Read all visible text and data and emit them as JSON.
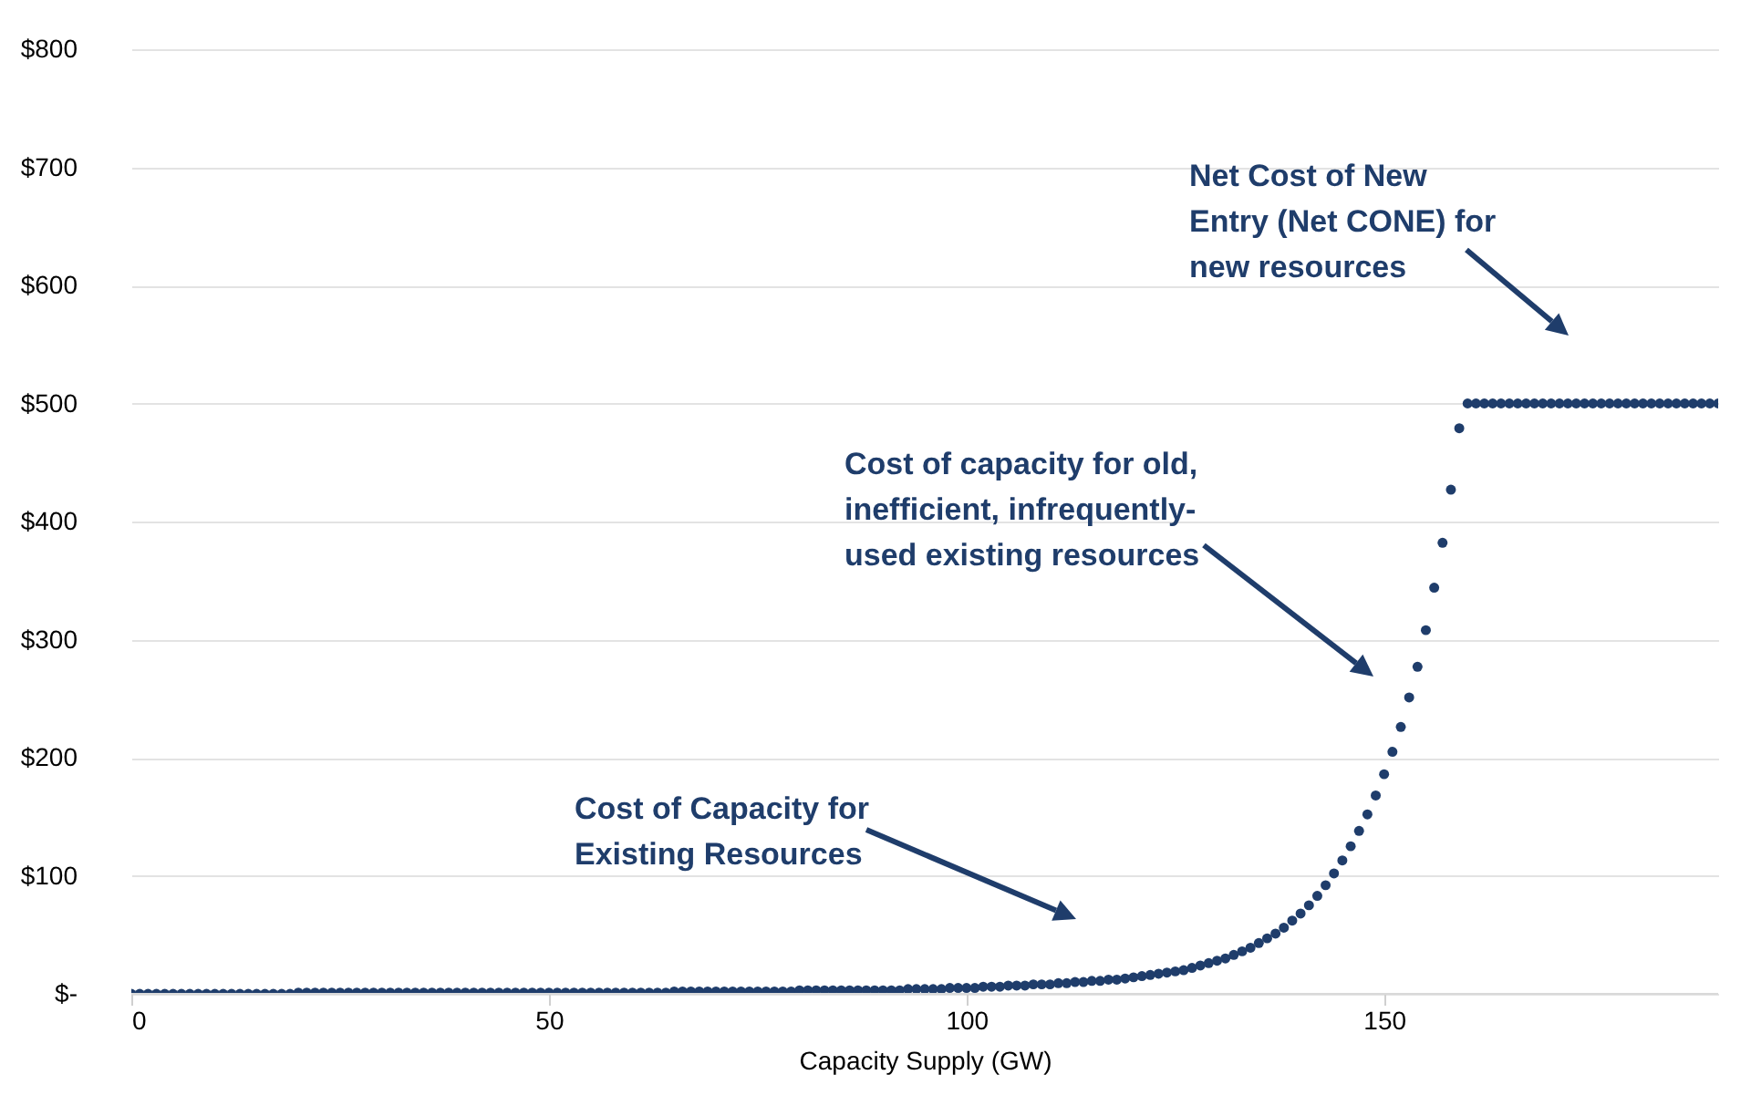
{
  "chart_data": {
    "type": "scatter",
    "xlabel": "Capacity Supply (GW)",
    "marker": "circle",
    "grid": "y",
    "xlim": [
      0,
      190
    ],
    "xticks": [
      0,
      50,
      100,
      150
    ],
    "ylim": [
      0,
      800
    ],
    "yticks": [
      {
        "value": 0,
        "label": "$-"
      },
      {
        "value": 100,
        "label": "$100"
      },
      {
        "value": 200,
        "label": "$200"
      },
      {
        "value": 300,
        "label": "$300"
      },
      {
        "value": 400,
        "label": "$400"
      },
      {
        "value": 500,
        "label": "$500"
      },
      {
        "value": 600,
        "label": "$600"
      },
      {
        "value": 700,
        "label": "$700"
      },
      {
        "value": 800,
        "label": "$800"
      }
    ],
    "annotations": [
      "Cost of Capacity for\nExisting Resources",
      "Cost of capacity for old,\ninefficient, infrequently-\nused existing resources",
      "Net Cost of New\nEntry (Net CONE) for\nnew resources"
    ],
    "series": [
      {
        "color": "#1f3d6b",
        "x": [
          0,
          1,
          2,
          3,
          4,
          5,
          6,
          7,
          8,
          9,
          10,
          11,
          12,
          13,
          14,
          15,
          16,
          17,
          18,
          19,
          20,
          21,
          22,
          23,
          24,
          25,
          26,
          27,
          28,
          29,
          30,
          31,
          32,
          33,
          34,
          35,
          36,
          37,
          38,
          39,
          40,
          41,
          42,
          43,
          44,
          45,
          46,
          47,
          48,
          49,
          50,
          51,
          52,
          53,
          54,
          55,
          56,
          57,
          58,
          59,
          60,
          61,
          62,
          63,
          64,
          65,
          66,
          67,
          68,
          69,
          70,
          71,
          72,
          73,
          74,
          75,
          76,
          77,
          78,
          79,
          80,
          81,
          82,
          83,
          84,
          85,
          86,
          87,
          88,
          89,
          90,
          91,
          92,
          93,
          94,
          95,
          96,
          97,
          98,
          99,
          100,
          101,
          102,
          103,
          104,
          105,
          106,
          107,
          108,
          109,
          110,
          111,
          112,
          113,
          114,
          115,
          116,
          117,
          118,
          119,
          120,
          121,
          122,
          123,
          124,
          125,
          126,
          127,
          128,
          129,
          130,
          131,
          132,
          133,
          134,
          135,
          136,
          137,
          138,
          139,
          140,
          141,
          142,
          143,
          144,
          145,
          146,
          147,
          148,
          149,
          150,
          151,
          152,
          153,
          154,
          155,
          156,
          157,
          158,
          159,
          160,
          161,
          162,
          163,
          164,
          165,
          166,
          167,
          168,
          169,
          170,
          171,
          172,
          173,
          174,
          175,
          176,
          177,
          178,
          179,
          180,
          181,
          182,
          183,
          184,
          185,
          186,
          187,
          188,
          189,
          190
        ],
        "values": [
          0,
          0,
          0,
          0,
          0,
          0,
          0,
          0,
          0,
          0,
          0,
          0,
          0,
          0,
          0,
          0,
          0,
          0,
          0,
          0,
          1,
          1,
          1,
          1,
          1,
          1,
          1,
          1,
          1,
          1,
          1,
          1,
          1,
          1,
          1,
          1,
          1,
          1,
          1,
          1,
          1,
          1,
          1,
          1,
          1,
          1,
          1,
          1,
          1,
          1,
          1,
          1,
          1,
          1,
          1,
          1,
          1,
          1,
          1,
          1,
          1,
          1,
          1,
          1,
          1,
          2,
          2,
          2,
          2,
          2,
          2,
          2,
          2,
          2,
          2,
          2,
          2,
          2,
          2,
          2,
          3,
          3,
          3,
          3,
          3,
          3,
          3,
          3,
          3,
          3,
          3,
          3,
          3,
          4,
          4,
          4,
          4,
          4,
          5,
          5,
          5,
          5,
          6,
          6,
          6,
          7,
          7,
          7,
          8,
          8,
          8,
          9,
          9,
          10,
          10,
          11,
          11,
          12,
          12,
          13,
          14,
          15,
          16,
          17,
          18,
          19,
          20,
          22,
          24,
          26,
          28,
          30,
          33,
          36,
          39,
          43,
          47,
          51,
          56,
          62,
          68,
          75,
          83,
          92,
          102,
          113,
          125,
          138,
          152,
          168,
          186,
          205,
          226,
          251,
          277,
          308,
          344,
          382,
          427,
          479,
          500,
          500,
          500,
          500,
          500,
          500,
          500,
          500,
          500,
          500,
          500,
          500,
          500,
          500,
          500,
          500,
          500,
          500,
          500,
          500,
          500,
          500,
          500,
          500,
          500,
          500,
          500,
          500,
          500,
          500,
          500
        ]
      }
    ]
  }
}
